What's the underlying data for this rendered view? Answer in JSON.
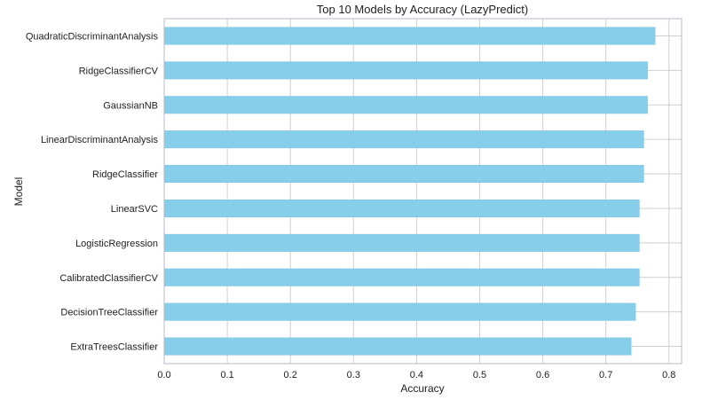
{
  "chart_data": {
    "type": "bar",
    "orientation": "horizontal",
    "title": "Top 10 Models by Accuracy (LazyPredict)",
    "xlabel": "Accuracy",
    "ylabel": "Model",
    "xlim": [
      0,
      0.82
    ],
    "xticks": [
      0.0,
      0.1,
      0.2,
      0.3,
      0.4,
      0.5,
      0.6,
      0.7,
      0.8
    ],
    "xtick_labels": [
      "0.0",
      "0.1",
      "0.2",
      "0.3",
      "0.4",
      "0.5",
      "0.6",
      "0.7",
      "0.8"
    ],
    "grid": true,
    "bar_color": "#87ceeb",
    "categories": [
      "QuadraticDiscriminantAnalysis",
      "RidgeClassifierCV",
      "GaussianNB",
      "LinearDiscriminantAnalysis",
      "RidgeClassifier",
      "LinearSVC",
      "LogisticRegression",
      "CalibratedClassifierCV",
      "DecisionTreeClassifier",
      "ExtraTreesClassifier"
    ],
    "values": [
      0.778,
      0.766,
      0.766,
      0.76,
      0.76,
      0.753,
      0.753,
      0.753,
      0.747,
      0.74
    ]
  }
}
